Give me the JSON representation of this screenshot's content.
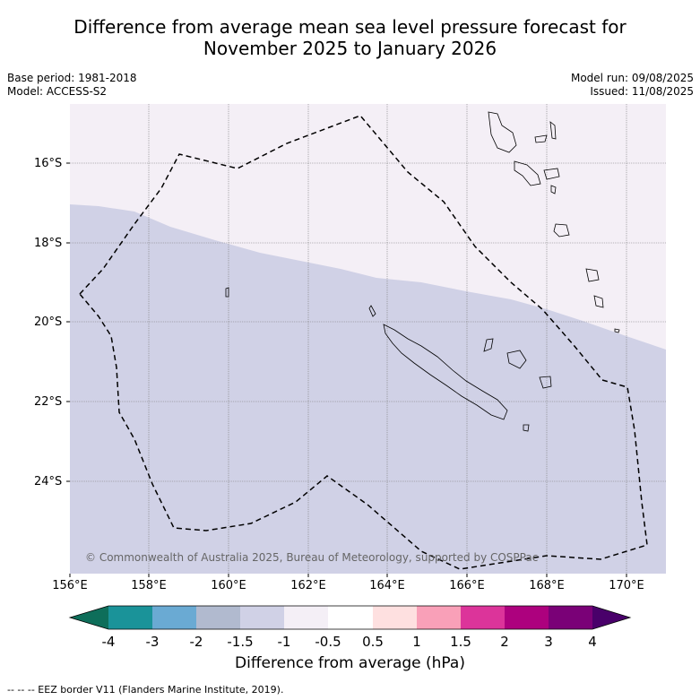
{
  "title_line1": "Difference from average mean sea level pressure forecast for",
  "title_line2": "November 2025 to January 2026",
  "base_period": "Base period: 1981-2018",
  "model": "Model: ACCESS-S2",
  "model_run": "Model run: 09/08/2025",
  "issued": "Issued: 11/08/2025",
  "copyright": "© Commonwealth of Australia 2025, Bureau of Meteorology, supported by COSPPac",
  "lat_labels": [
    "16°S",
    "18°S",
    "20°S",
    "22°S",
    "24°S"
  ],
  "lon_labels": [
    "156°E",
    "158°E",
    "160°E",
    "162°E",
    "164°E",
    "166°E",
    "168°E",
    "170°E"
  ],
  "colorbar": {
    "title": "Difference from average (hPa)",
    "labels": [
      "-4",
      "-3",
      "-2",
      "-1.5",
      "-1",
      "-0.5",
      "0.5",
      "1",
      "1.5",
      "2",
      "3",
      "4"
    ],
    "colors": [
      "#1a9399",
      "#6aaad3",
      "#b1bacf",
      "#d0d1e6",
      "#f4eff6",
      "#ffffff",
      "#fee0e0",
      "#f9a0b8",
      "#dc349a",
      "#ad017e",
      "#7a0177"
    ],
    "under_color": "#0e6e5a",
    "over_color": "#49006a"
  },
  "footer": "--  --  -- EEZ border V11 (Flanders Marine Institute, 2019).",
  "colors": {
    "area_upper": "#f4eff6",
    "area_lower": "#d0d1e6"
  }
}
